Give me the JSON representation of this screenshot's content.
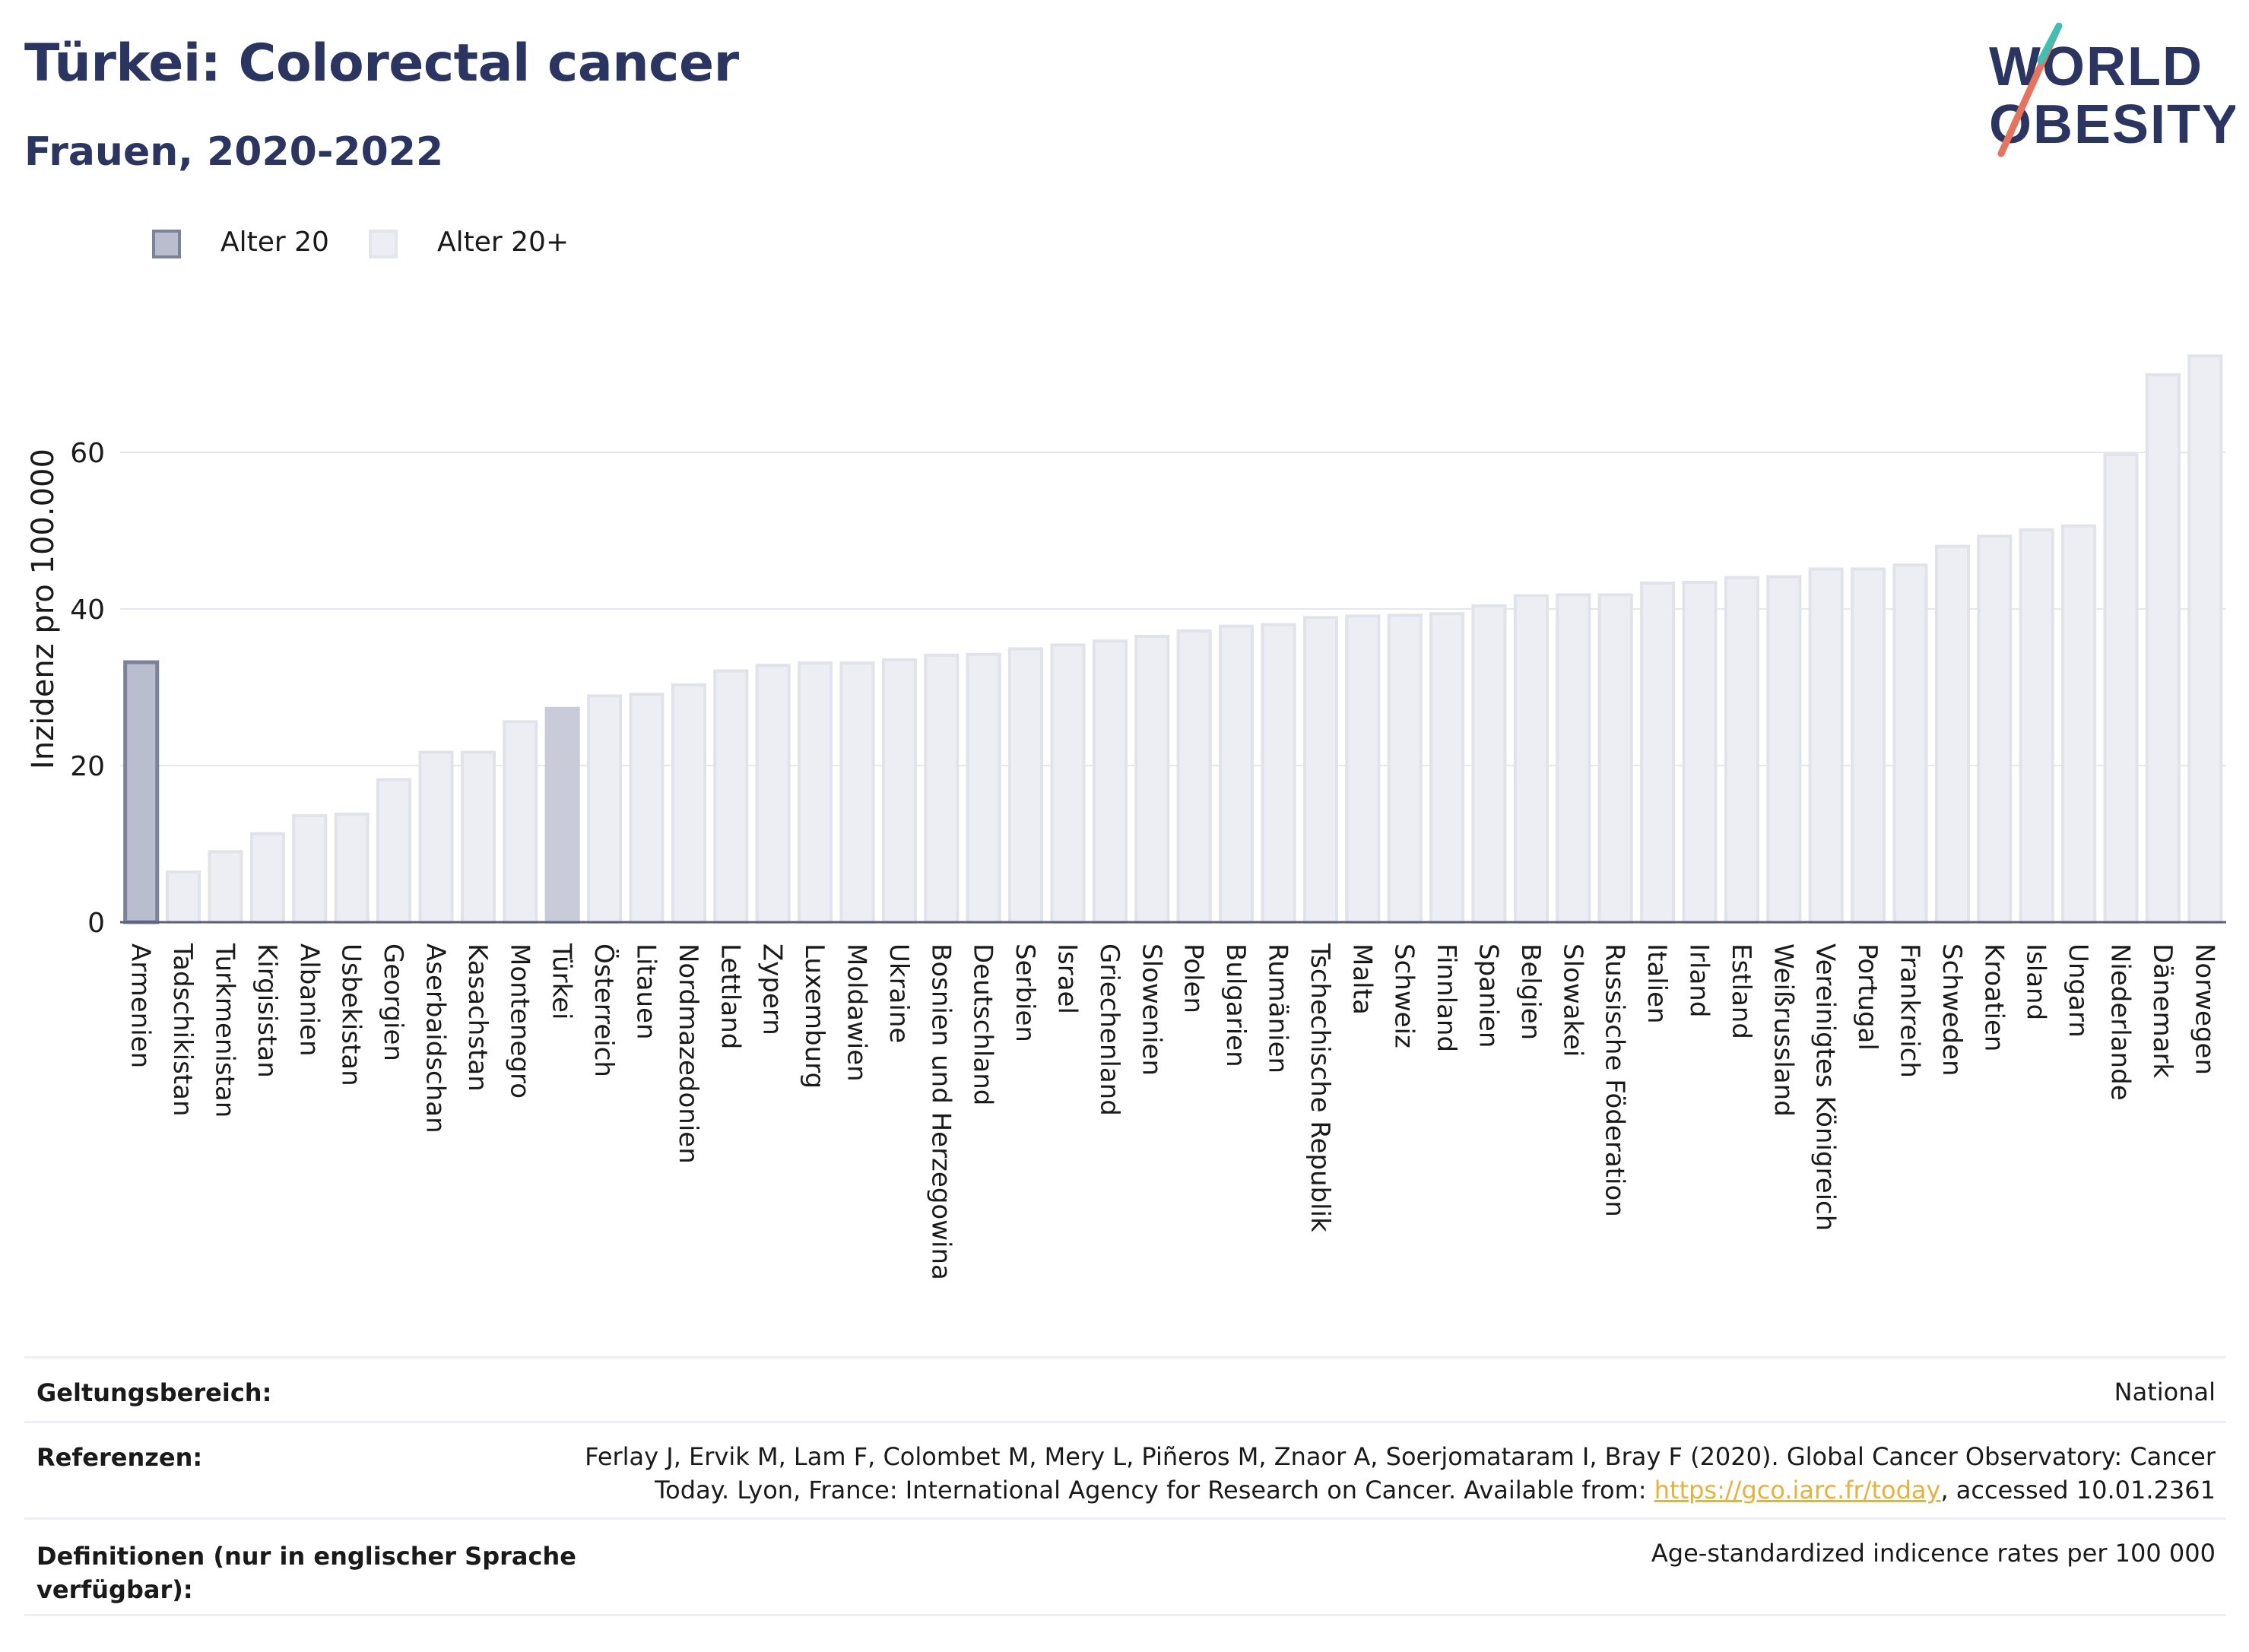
{
  "header": {
    "title": "Türkei: Colorectal cancer",
    "subtitle": "Frauen, 2020-2022"
  },
  "logo": {
    "line1": "WORLD",
    "line2": "OBESITY"
  },
  "legend": [
    {
      "label": "Alter 20",
      "color": "#9aa0b8"
    },
    {
      "label": "Alter 20+",
      "color": "#e6e7ee"
    }
  ],
  "chart_data": {
    "type": "bar",
    "ylabel": "Inzidenz pro 100.000",
    "ylim": [
      0,
      75
    ],
    "yticks": [
      0,
      20,
      40,
      60
    ],
    "grid": true,
    "highlight": "Türkei",
    "categories": [
      "Armenien",
      "Tadschikistan",
      "Turkmenistan",
      "Kirgisistan",
      "Albanien",
      "Usbekistan",
      "Georgien",
      "Aserbaidschan",
      "Kasachstan",
      "Montenegro",
      "Türkei",
      "Österreich",
      "Litauen",
      "Nordmazedonien",
      "Lettland",
      "Zypern",
      "Luxemburg",
      "Moldawien",
      "Ukraine",
      "Bosnien und Herzegowina",
      "Deutschland",
      "Serbien",
      "Israel",
      "Griechenland",
      "Slowenien",
      "Polen",
      "Bulgarien",
      "Rumänien",
      "Tschechische Republik",
      "Malta",
      "Schweiz",
      "Finnland",
      "Spanien",
      "Belgien",
      "Slowakei",
      "Russische Föderation",
      "Italien",
      "Irland",
      "Estland",
      "Weißrussland",
      "Vereinigtes Königreich",
      "Portugal",
      "Frankreich",
      "Schweden",
      "Kroatien",
      "Island",
      "Ungarn",
      "Niederlande",
      "Dänemark",
      "Norwegen"
    ],
    "series": [
      {
        "name": "Alter 20",
        "values": [
          33.2,
          null,
          null,
          null,
          null,
          null,
          null,
          null,
          null,
          null,
          null,
          null,
          null,
          null,
          null,
          null,
          null,
          null,
          null,
          null,
          null,
          null,
          null,
          null,
          null,
          null,
          null,
          null,
          null,
          null,
          null,
          null,
          null,
          null,
          null,
          null,
          null,
          null,
          null,
          null,
          null,
          null,
          null,
          null,
          null,
          null,
          null,
          null,
          null,
          null
        ]
      },
      {
        "name": "Alter 20+",
        "values": [
          null,
          6.4,
          9.0,
          11.3,
          13.6,
          13.8,
          18.2,
          21.7,
          21.7,
          25.6,
          27.3,
          28.9,
          29.1,
          30.3,
          32.1,
          32.8,
          33.1,
          33.1,
          33.5,
          34.1,
          34.2,
          34.9,
          35.4,
          35.9,
          36.5,
          37.2,
          37.8,
          38.0,
          38.9,
          39.1,
          39.2,
          39.4,
          40.4,
          41.7,
          41.8,
          41.8,
          43.3,
          43.4,
          44.0,
          44.1,
          45.1,
          45.1,
          45.6,
          48.0,
          49.3,
          50.1,
          50.6,
          59.7,
          69.9,
          72.3
        ]
      }
    ]
  },
  "footer": {
    "scope_label": "Geltungsbereich:",
    "scope_value": "National",
    "refs_label": "Referenzen:",
    "refs_text_1": "Ferlay J, Ervik M, Lam F, Colombet M, Mery L, Piñeros M, Znaor A, Soerjomataram I, Bray F (2020). Global Cancer Observatory: Cancer",
    "refs_text_2": "Today. Lyon, France: International Agency for Research on Cancer. Available from: ",
    "refs_link": "https://gco.iarc.fr/today",
    "refs_text_3": ", accessed 10.01.2361",
    "defs_label_1": "Definitionen (nur in englischer Sprache",
    "defs_label_2": "verfügbar):",
    "defs_value": "Age-standardized indicence rates per 100 000"
  }
}
